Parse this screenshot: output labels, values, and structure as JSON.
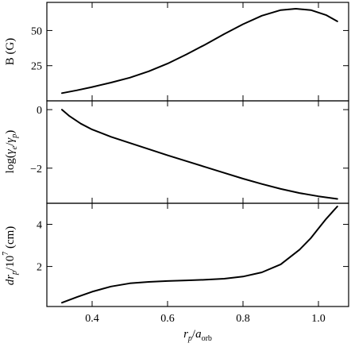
{
  "chart_data": {
    "type": "line",
    "shared_x": true,
    "xlabel": {
      "main": "r",
      "main_sub": "p",
      "slash": "/",
      "denom": "a",
      "denom_sub": "orb"
    },
    "xlim": [
      0.28,
      1.08
    ],
    "xticks": [
      0.4,
      0.6,
      0.8,
      1.0
    ],
    "xtick_labels": [
      "0.4",
      "0.6",
      "0.8",
      "1.0"
    ],
    "panels": [
      {
        "name": "B",
        "ylabel": "B (G)",
        "ylim": [
          0,
          70
        ],
        "yticks": [
          25,
          50
        ],
        "ytick_labels": [
          "25",
          "50"
        ],
        "x": [
          0.32,
          0.36,
          0.4,
          0.45,
          0.5,
          0.55,
          0.6,
          0.65,
          0.7,
          0.75,
          0.8,
          0.85,
          0.9,
          0.94,
          0.98,
          1.02,
          1.05
        ],
        "y": [
          5.5,
          7.5,
          9.8,
          13.0,
          16.5,
          21.0,
          26.5,
          33.0,
          40.0,
          47.5,
          54.5,
          60.5,
          64.5,
          65.5,
          64.5,
          61.0,
          56.5
        ]
      },
      {
        "name": "gamma-ratio",
        "ylabel": "log(γe/γp)",
        "ylim": [
          -3.2,
          0.3
        ],
        "yticks": [
          -2,
          0
        ],
        "ytick_labels": [
          "−2",
          "0"
        ],
        "x": [
          0.32,
          0.34,
          0.37,
          0.4,
          0.45,
          0.5,
          0.55,
          0.6,
          0.65,
          0.7,
          0.75,
          0.8,
          0.85,
          0.9,
          0.95,
          1.0,
          1.05
        ],
        "y": [
          0.0,
          -0.22,
          -0.48,
          -0.68,
          -0.93,
          -1.14,
          -1.35,
          -1.56,
          -1.76,
          -1.96,
          -2.16,
          -2.36,
          -2.54,
          -2.71,
          -2.85,
          -2.96,
          -3.05
        ]
      },
      {
        "name": "drp",
        "ylabel": "drp/10^7 (cm)",
        "ylim": [
          0.1,
          5.0
        ],
        "yticks": [
          2,
          4
        ],
        "ytick_labels": [
          "2",
          "4"
        ],
        "x": [
          0.32,
          0.36,
          0.4,
          0.45,
          0.5,
          0.55,
          0.6,
          0.65,
          0.7,
          0.75,
          0.8,
          0.85,
          0.9,
          0.95,
          0.98,
          1.0,
          1.02,
          1.04,
          1.05
        ],
        "y": [
          0.28,
          0.55,
          0.8,
          1.05,
          1.2,
          1.27,
          1.31,
          1.34,
          1.37,
          1.42,
          1.52,
          1.72,
          2.1,
          2.8,
          3.35,
          3.8,
          4.25,
          4.65,
          4.85
        ]
      }
    ]
  },
  "labels": {
    "ylabel_B": "B (G)",
    "ylabel_gamma": {
      "pre": "log(",
      "g1": "γ",
      "s1": "e",
      "mid": "/",
      "g2": "γ",
      "s2": "p",
      "post": ")"
    },
    "ylabel_dr": {
      "d": "d",
      "r": "r",
      "s": "p",
      "mid": "/10",
      "exp": "7",
      "post": " (cm)"
    }
  }
}
